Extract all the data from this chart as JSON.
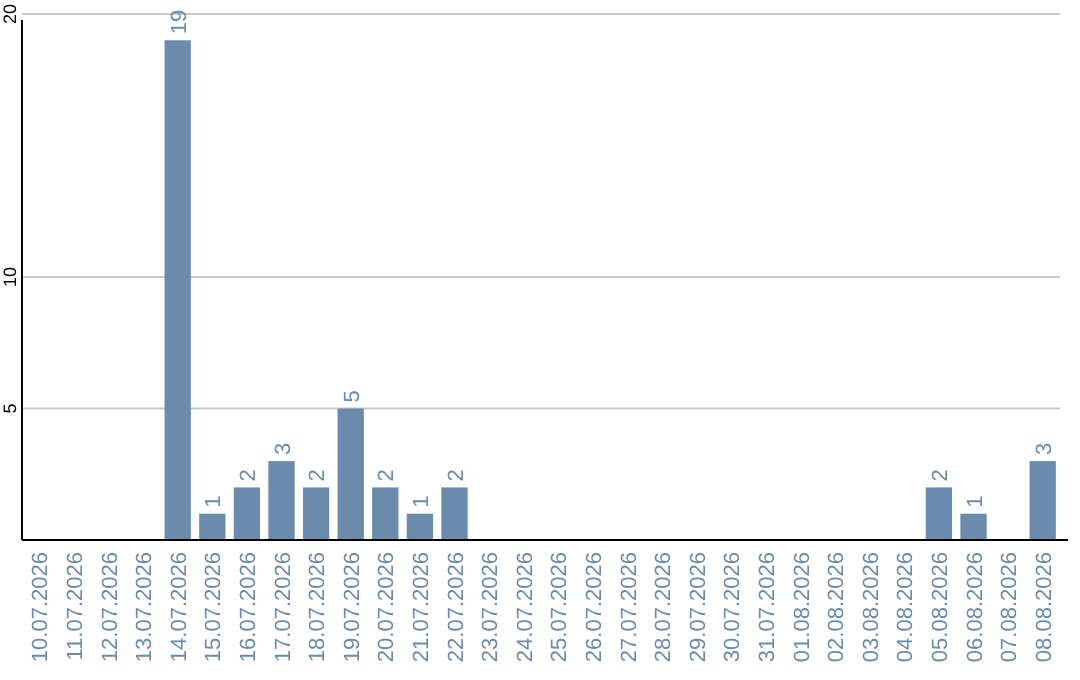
{
  "chart_data": {
    "type": "bar",
    "categories": [
      "10.07.2026",
      "11.07.2026",
      "12.07.2026",
      "13.07.2026",
      "14.07.2026",
      "15.07.2026",
      "16.07.2026",
      "17.07.2026",
      "18.07.2026",
      "19.07.2026",
      "20.07.2026",
      "21.07.2026",
      "22.07.2026",
      "23.07.2026",
      "24.07.2026",
      "25.07.2026",
      "26.07.2026",
      "27.07.2026",
      "28.07.2026",
      "29.07.2026",
      "30.07.2026",
      "31.07.2026",
      "01.08.2026",
      "02.08.2026",
      "03.08.2026",
      "04.08.2026",
      "05.08.2026",
      "06.08.2026",
      "07.08.2026",
      "08.08.2026"
    ],
    "values": [
      0,
      0,
      0,
      0,
      19,
      1,
      2,
      3,
      2,
      5,
      2,
      1,
      2,
      0,
      0,
      0,
      0,
      0,
      0,
      0,
      0,
      0,
      0,
      0,
      0,
      0,
      2,
      1,
      0,
      3
    ],
    "value_labels": [
      null,
      null,
      null,
      null,
      "19",
      "1",
      "2",
      "3",
      "2",
      "5",
      "2",
      "1",
      "2",
      null,
      null,
      null,
      null,
      null,
      null,
      null,
      null,
      null,
      null,
      null,
      null,
      null,
      "2",
      "1",
      null,
      "3"
    ],
    "color": "#6a8bab",
    "ylim": [
      0,
      20
    ],
    "yticks": [
      5,
      10,
      20
    ],
    "grid": "y"
  }
}
